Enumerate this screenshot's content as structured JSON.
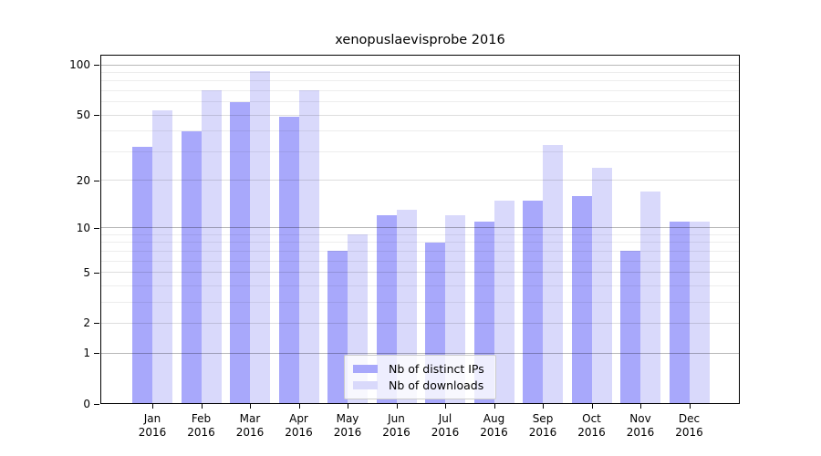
{
  "title": "xenopuslaevisprobe 2016",
  "chart_data": {
    "type": "bar",
    "categories": [
      "Jan 2016",
      "Feb 2016",
      "Mar 2016",
      "Apr 2016",
      "May 2016",
      "Jun 2016",
      "Jul 2016",
      "Aug 2016",
      "Sep 2016",
      "Oct 2016",
      "Nov 2016",
      "Dec 2016"
    ],
    "months": [
      "Jan",
      "Feb",
      "Mar",
      "Apr",
      "May",
      "Jun",
      "Jul",
      "Aug",
      "Sep",
      "Oct",
      "Nov",
      "Dec"
    ],
    "year": "2016",
    "series": [
      {
        "name": "Nb of distinct IPs",
        "color": "#a8a8fb",
        "values": [
          32,
          40,
          60,
          49,
          7,
          12,
          8,
          11,
          15,
          16,
          7,
          11
        ]
      },
      {
        "name": "Nb of downloads",
        "color": "#d9d9fb",
        "values": [
          53,
          70,
          92,
          70,
          9,
          13,
          12,
          15,
          33,
          24,
          17,
          11
        ]
      }
    ],
    "xlabel": "",
    "ylabel": "",
    "yscale": "log1p",
    "ylim": [
      0,
      115
    ],
    "yticks": [
      100,
      50,
      20,
      10,
      5,
      2,
      1,
      0
    ],
    "grid": true,
    "gridline_values_major": [
      1,
      10,
      100
    ],
    "gridline_values_mid": [
      2,
      5,
      20,
      50
    ],
    "gridline_values_minor": [
      3,
      4,
      6,
      7,
      8,
      9,
      30,
      40,
      60,
      70,
      80,
      90
    ],
    "gridline_color_major": "rgba(0,0,0,0.28)",
    "gridline_color_mid": "rgba(0,0,0,0.13)",
    "gridline_color_minor": "rgba(0,0,0,0.07)",
    "legend_position": "bottom-center-inside"
  },
  "colors": {
    "background": "#ffffff",
    "axis": "#000000",
    "bar_distinct_ips": "#a8a8fb",
    "bar_downloads": "#d9d9fb",
    "legend_border": "#cccccc"
  }
}
